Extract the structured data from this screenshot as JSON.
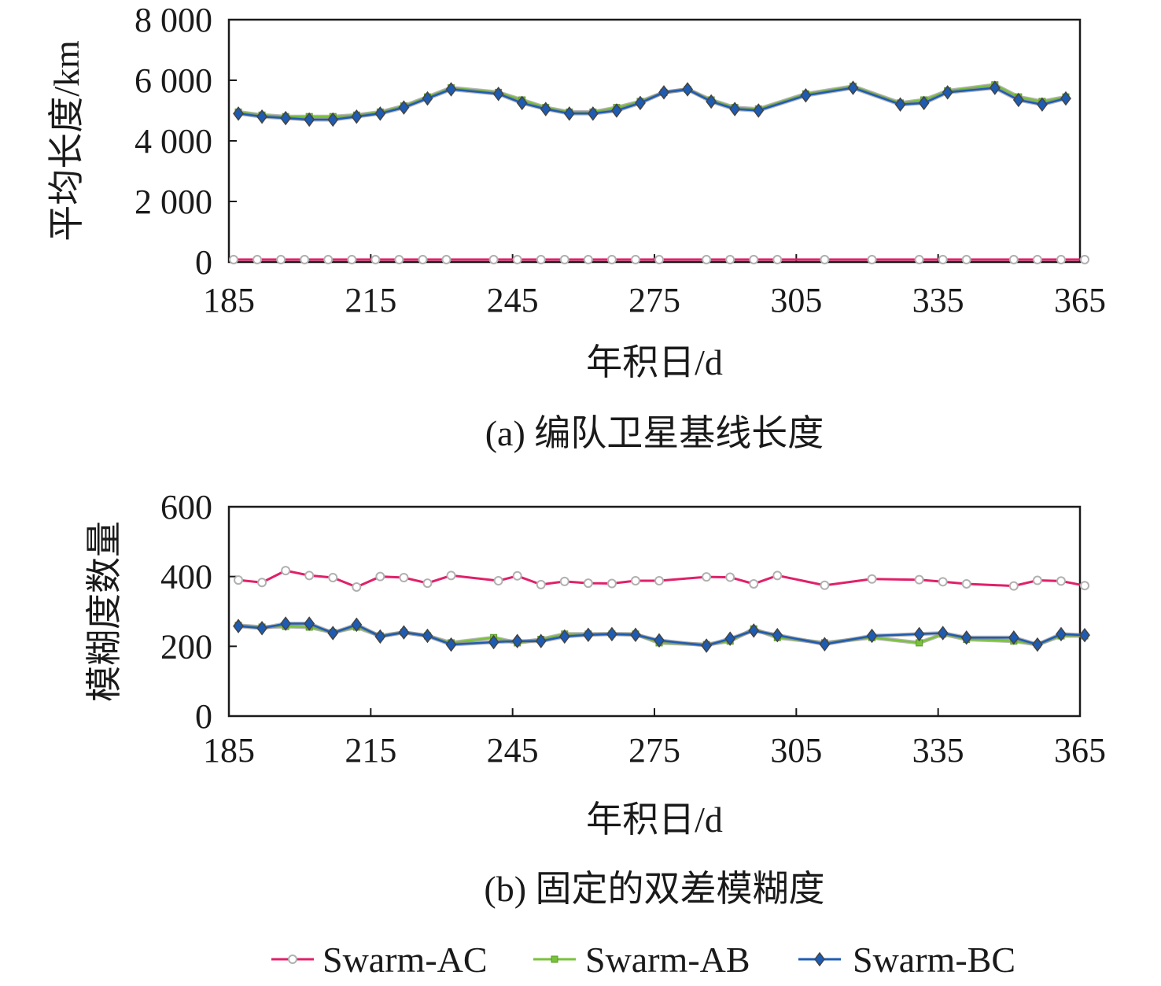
{
  "chart_data": [
    {
      "type": "line",
      "caption": "(a) 编队卫星基线长度",
      "xlabel": "年积日/d",
      "ylabel": "平均长度/km",
      "xlim": [
        185,
        365
      ],
      "ylim": [
        0,
        8000
      ],
      "x_ticks": [
        "185",
        "215",
        "245",
        "275",
        "305",
        "335",
        "365"
      ],
      "y_ticks": [
        "0",
        "2 000",
        "4 000",
        "6 000",
        "8 000"
      ],
      "series": [
        {
          "name": "Swarm-AC",
          "color": "#e0206a",
          "marker": "circle",
          "x": [
            186,
            191,
            196,
            201,
            206,
            211,
            216,
            221,
            226,
            231,
            241,
            246,
            251,
            256,
            261,
            266,
            271,
            276,
            286,
            291,
            296,
            301,
            311,
            321,
            331,
            336,
            341,
            351,
            356,
            361,
            366
          ],
          "y": [
            80,
            80,
            80,
            80,
            80,
            80,
            80,
            80,
            80,
            80,
            80,
            80,
            80,
            80,
            80,
            80,
            80,
            80,
            80,
            80,
            80,
            80,
            80,
            80,
            80,
            80,
            80,
            80,
            80,
            80,
            80
          ]
        },
        {
          "name": "Swarm-AB",
          "color": "#7ac23a",
          "marker": "square",
          "x": [
            187,
            192,
            197,
            202,
            207,
            212,
            217,
            222,
            227,
            232,
            242,
            247,
            252,
            257,
            262,
            267,
            272,
            277,
            282,
            287,
            292,
            297,
            307,
            317,
            327,
            332,
            337,
            347,
            352,
            357,
            362
          ],
          "y": [
            4950,
            4850,
            4800,
            4800,
            4800,
            4850,
            4950,
            5150,
            5450,
            5750,
            5600,
            5350,
            5100,
            4950,
            4950,
            5100,
            5300,
            5600,
            5700,
            5350,
            5100,
            5050,
            5550,
            5800,
            5250,
            5350,
            5650,
            5850,
            5450,
            5300,
            5450
          ]
        },
        {
          "name": "Swarm-BC",
          "color": "#1e5cb3",
          "marker": "diamond",
          "x": [
            187,
            192,
            197,
            202,
            207,
            212,
            217,
            222,
            227,
            232,
            242,
            247,
            252,
            257,
            262,
            267,
            272,
            277,
            282,
            287,
            292,
            297,
            307,
            317,
            327,
            332,
            337,
            347,
            352,
            357,
            362
          ],
          "y": [
            4900,
            4800,
            4750,
            4700,
            4700,
            4800,
            4900,
            5100,
            5400,
            5700,
            5550,
            5250,
            5050,
            4900,
            4900,
            5000,
            5250,
            5600,
            5700,
            5300,
            5050,
            5000,
            5500,
            5750,
            5200,
            5250,
            5600,
            5750,
            5350,
            5200,
            5400
          ]
        }
      ]
    },
    {
      "type": "line",
      "caption": "(b) 固定的双差模糊度",
      "xlabel": "年积日/d",
      "ylabel": "模糊度数量",
      "xlim": [
        185,
        365
      ],
      "ylim": [
        0,
        600
      ],
      "x_ticks": [
        "185",
        "215",
        "245",
        "275",
        "305",
        "335",
        "365"
      ],
      "y_ticks": [
        "0",
        "200",
        "400",
        "600"
      ],
      "series": [
        {
          "name": "Swarm-AC",
          "color": "#e0206a",
          "marker": "circle",
          "x": [
            187,
            192,
            197,
            202,
            207,
            212,
            217,
            222,
            227,
            232,
            242,
            246,
            251,
            256,
            261,
            266,
            271,
            276,
            286,
            291,
            296,
            301,
            311,
            321,
            331,
            336,
            341,
            351,
            356,
            361,
            366
          ],
          "y": [
            390,
            383,
            417,
            403,
            397,
            370,
            400,
            397,
            381,
            403,
            388,
            402,
            377,
            386,
            381,
            380,
            388,
            388,
            399,
            398,
            379,
            403,
            375,
            393,
            391,
            385,
            379,
            373,
            389,
            387,
            374
          ]
        },
        {
          "name": "Swarm-AB",
          "color": "#7ac23a",
          "marker": "square",
          "x": [
            187,
            192,
            197,
            202,
            207,
            212,
            217,
            222,
            227,
            232,
            241,
            246,
            251,
            256,
            261,
            266,
            271,
            276,
            286,
            291,
            296,
            301,
            311,
            321,
            331,
            336,
            341,
            351,
            356,
            361,
            366
          ],
          "y": [
            260,
            255,
            257,
            255,
            240,
            255,
            230,
            240,
            230,
            210,
            225,
            210,
            220,
            235,
            235,
            235,
            235,
            210,
            205,
            215,
            250,
            225,
            210,
            225,
            210,
            235,
            220,
            215,
            205,
            230,
            230
          ]
        },
        {
          "name": "Swarm-BC",
          "color": "#1e5cb3",
          "marker": "diamond",
          "x": [
            187,
            192,
            197,
            202,
            207,
            212,
            217,
            222,
            227,
            232,
            241,
            246,
            251,
            256,
            261,
            266,
            271,
            276,
            286,
            291,
            296,
            301,
            311,
            321,
            331,
            336,
            341,
            351,
            356,
            361,
            366
          ],
          "y": [
            258,
            252,
            265,
            265,
            238,
            262,
            228,
            240,
            230,
            205,
            212,
            215,
            215,
            228,
            233,
            235,
            233,
            217,
            202,
            222,
            245,
            232,
            206,
            230,
            235,
            238,
            225,
            225,
            205,
            235,
            232
          ]
        }
      ]
    }
  ],
  "legend": {
    "items": [
      {
        "label": "Swarm-AC",
        "color": "#e0206a",
        "marker": "circle"
      },
      {
        "label": "Swarm-AB",
        "color": "#7ac23a",
        "marker": "square"
      },
      {
        "label": "Swarm-BC",
        "color": "#1e5cb3",
        "marker": "diamond"
      }
    ]
  }
}
